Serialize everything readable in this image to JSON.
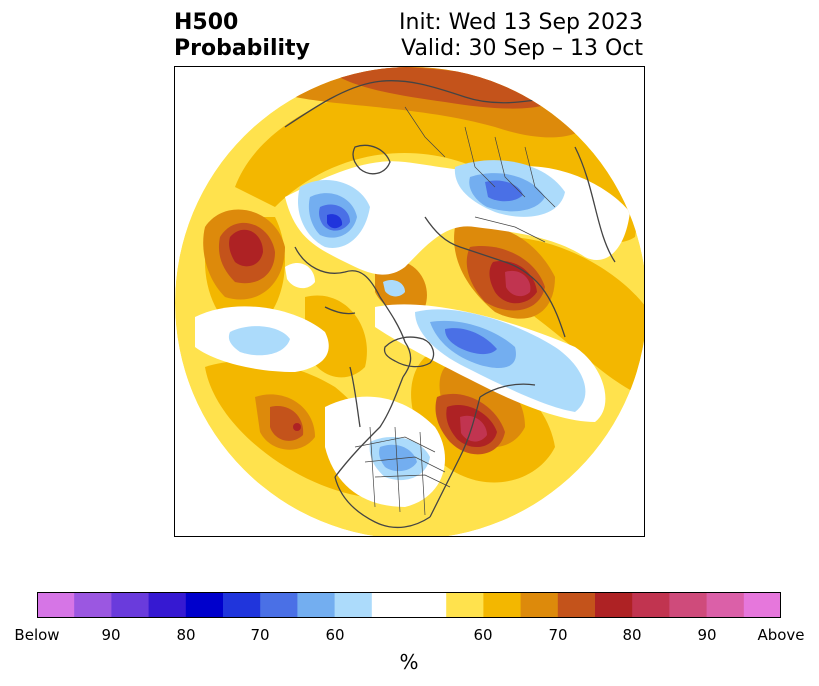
{
  "header": {
    "title_line1": "H500",
    "title_line2": "Probability",
    "init_text": "Init: Wed 13 Sep 2023",
    "valid_text": "Valid: 30 Sep – 13 Oct"
  },
  "map": {
    "projection": "north-polar-stereographic",
    "background_fill": "#ffe24d",
    "land_boundary_color": "#444444"
  },
  "colorbar": {
    "colors": [
      "#d675e6",
      "#9b57e1",
      "#6a3bdc",
      "#3619d2",
      "#0000cc",
      "#2035dc",
      "#4a70e6",
      "#73aef0",
      "#acdbfb",
      "#ffffff",
      "#ffe24d",
      "#f3b700",
      "#dd8a0b",
      "#c4531b",
      "#ae2224",
      "#c13450",
      "#cf4b7b",
      "#db60a8",
      "#e677dc"
    ],
    "widths": [
      1,
      1,
      1,
      1,
      1,
      1,
      1,
      1,
      1,
      2,
      1,
      1,
      1,
      1,
      1,
      1,
      1,
      1,
      1
    ],
    "ticks": [
      "Below",
      "90",
      "80",
      "70",
      "60",
      "60",
      "70",
      "80",
      "90",
      "Above"
    ],
    "units": "%"
  }
}
